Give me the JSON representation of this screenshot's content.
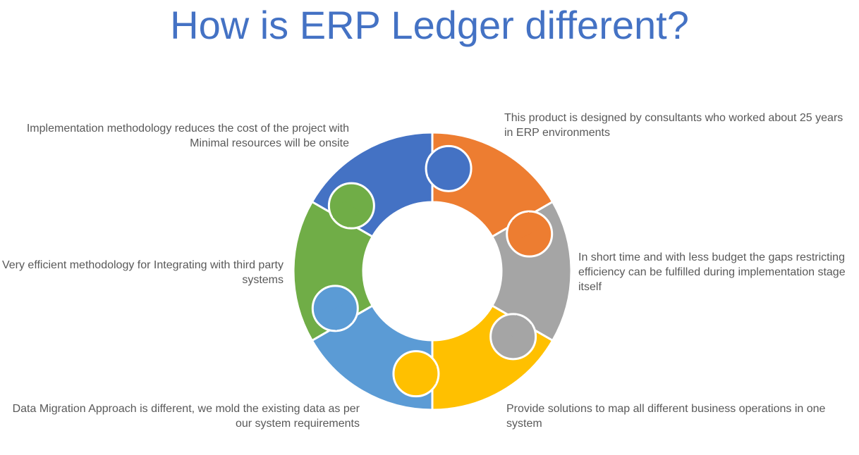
{
  "title": "How is ERP Ledger different?",
  "colors": {
    "title": "#4472c4",
    "segment_blue": "#4472c4",
    "segment_orange": "#ed7d31",
    "segment_gray": "#a5a5a5",
    "segment_yellow": "#ffc000",
    "segment_light_blue": "#5b9bd5",
    "segment_green": "#70ad47",
    "text": "#595959"
  },
  "diagram": {
    "type": "cycle-puzzle",
    "segments": [
      {
        "name": "top-left",
        "color": "#4472c4",
        "text": "Implementation methodology reduces the cost of the project with Minimal resources will be onsite"
      },
      {
        "name": "top-right",
        "color": "#ed7d31",
        "text": "This product is designed by consultants who worked about 25 years in ERP environments"
      },
      {
        "name": "right",
        "color": "#a5a5a5",
        "text": "In short time and with less budget the gaps restricting efficiency can be fulfilled during implementation stage itself"
      },
      {
        "name": "bottom-right",
        "color": "#ffc000",
        "text": "Provide solutions to map all different business operations in one system"
      },
      {
        "name": "bottom-left",
        "color": "#5b9bd5",
        "text": "Data Migration Approach is different, we mold the existing data as per our system requirements"
      },
      {
        "name": "left",
        "color": "#70ad47",
        "text": "Very efficient methodology for Integrating with third party systems"
      }
    ]
  }
}
